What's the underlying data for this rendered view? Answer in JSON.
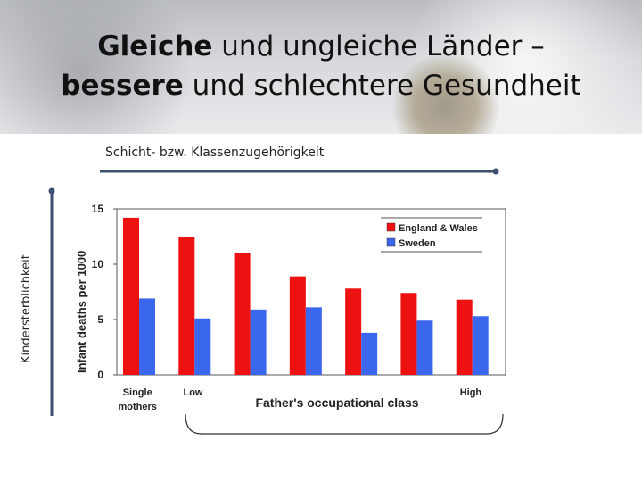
{
  "slide": {
    "title_line1_bold": "Gleiche",
    "title_line1_rest": " und ungleiche Länder –",
    "title_line2_bold": "bessere",
    "title_line2_rest": " und schlechtere Gesundheit",
    "x_arrow_label": "Schicht- bzw. Klassenzugehörigkeit",
    "y_arrow_label": "Kindersterblichkeit"
  },
  "colors": {
    "arrow": "#3d5070",
    "series_england": "#ee1111",
    "series_sweden": "#3b66ee"
  },
  "chart_data": {
    "type": "bar",
    "categories": [
      "Single mothers",
      "Low",
      "",
      "",
      "",
      "",
      "High"
    ],
    "category_label_lines": [
      [
        "Single",
        "mothers"
      ],
      [
        "Low"
      ],
      [],
      [],
      [],
      [],
      [
        "High"
      ]
    ],
    "series": [
      {
        "name": "England & Wales",
        "values": [
          14.2,
          12.5,
          11.0,
          8.9,
          7.8,
          7.4,
          6.8
        ]
      },
      {
        "name": "Sweden",
        "values": [
          6.9,
          5.1,
          5.9,
          6.1,
          3.8,
          4.9,
          5.3
        ]
      }
    ],
    "title": "",
    "xlabel": "Father's occupational class",
    "ylabel": "Infant deaths per 1000",
    "ylim": [
      0,
      15
    ],
    "yticks": [
      0,
      5,
      10,
      15
    ],
    "grid": false,
    "legend_position": "top-right"
  }
}
